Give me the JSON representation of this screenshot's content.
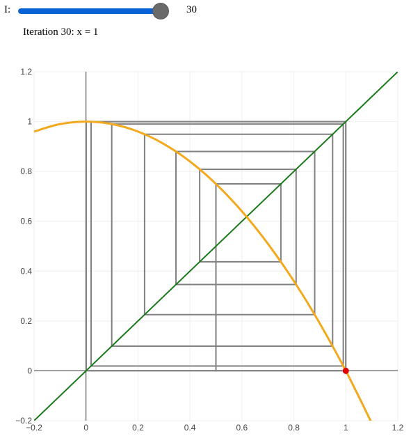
{
  "slider": {
    "label": "I:",
    "min": 0,
    "max": 30,
    "value": 30,
    "value_text": "30",
    "fill_color": "#0a63d6"
  },
  "status": {
    "text": "Iteration 30: x = 1"
  },
  "chart_data": {
    "type": "line",
    "xlim": [
      -0.2,
      1.2
    ],
    "ylim": [
      -0.2,
      1.2
    ],
    "x_ticks": [
      "−0.2",
      "0",
      "0.2",
      "0.4",
      "0.6",
      "0.8",
      "1",
      "1.2"
    ],
    "y_ticks": [
      "−0.2",
      "0",
      "0.2",
      "0.4",
      "0.6",
      "0.8",
      "1",
      "1.2"
    ],
    "x_tick_values": [
      -0.2,
      0,
      0.2,
      0.4,
      0.6,
      0.8,
      1,
      1.2
    ],
    "y_tick_values": [
      -0.2,
      0,
      0.2,
      0.4,
      0.6,
      0.8,
      1,
      1.2
    ],
    "grid": true,
    "colors": {
      "curve": "#f2a91e",
      "diagonal": "#1a7a1a",
      "cobweb": "#808080",
      "current_point": "#e00000",
      "grid": "#eeeeee",
      "axis": "#333333"
    },
    "curve": {
      "x": [
        -0.2,
        -0.1,
        0.0,
        0.1,
        0.2,
        0.3,
        0.4,
        0.5,
        0.6,
        0.7,
        0.8,
        0.9,
        1.0,
        1.1
      ],
      "y": [
        0.96,
        0.99,
        1.0,
        0.99,
        0.96,
        0.91,
        0.84,
        0.75,
        0.64,
        0.51,
        0.36,
        0.19,
        0.0,
        -0.21
      ]
    },
    "diagonal": {
      "x": [
        -0.2,
        1.2
      ],
      "y": [
        -0.2,
        1.2
      ]
    },
    "cobweb": {
      "x": [
        0.5,
        0.5,
        0.75,
        0.75,
        0.4375,
        0.4375,
        0.8086,
        0.8086,
        0.3462,
        0.3462,
        0.8802,
        0.8802,
        0.2253,
        0.2253,
        0.9492,
        0.9492,
        0.099,
        0.099,
        0.9902,
        0.9902,
        0.0195,
        0.0195,
        0.9996,
        0.9996,
        0.0008,
        0.0008,
        1.0,
        1.0,
        0.0,
        0.0,
        1.0,
        1.0,
        0.0,
        0.0,
        1.0
      ],
      "y": [
        0.0,
        0.75,
        0.75,
        0.4375,
        0.4375,
        0.8086,
        0.8086,
        0.3462,
        0.3462,
        0.8802,
        0.8802,
        0.2253,
        0.2253,
        0.9492,
        0.9492,
        0.099,
        0.099,
        0.9902,
        0.9902,
        0.0195,
        0.0195,
        0.9996,
        0.9996,
        0.0008,
        0.0008,
        1.0,
        1.0,
        0.0,
        0.0,
        1.0,
        1.0,
        0.0,
        0.0,
        1.0,
        1.0
      ]
    },
    "current_point": {
      "x": 1.0,
      "y": 0.0
    }
  }
}
